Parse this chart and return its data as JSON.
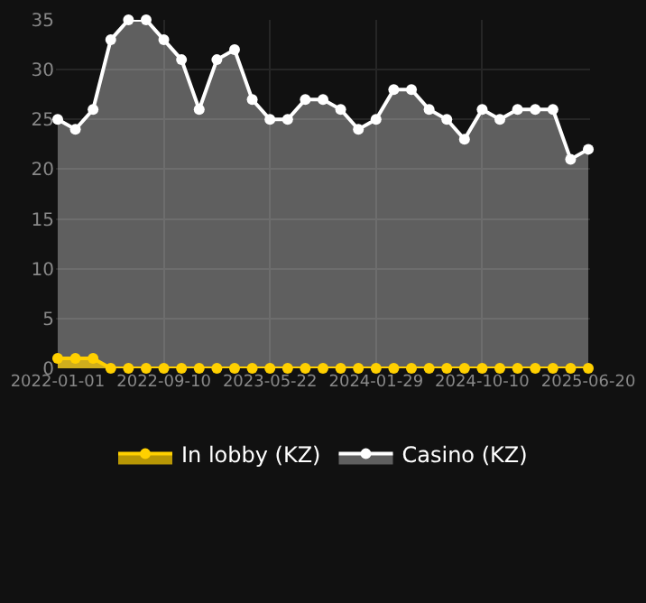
{
  "chart_data": {
    "type": "area",
    "categories": [
      "2022-01-01",
      null,
      null,
      null,
      null,
      null,
      "2022-09-10",
      null,
      null,
      null,
      null,
      null,
      "2023-05-22",
      null,
      null,
      null,
      null,
      null,
      "2024-01-29",
      null,
      null,
      null,
      null,
      null,
      "2024-10-10",
      null,
      null,
      null,
      null,
      null,
      "2025-06-20"
    ],
    "series": [
      {
        "name": "In lobby (KZ)",
        "color": "#ffd000",
        "values": [
          1,
          1,
          1,
          0,
          0,
          0,
          0,
          0,
          0,
          0,
          0,
          0,
          0,
          0,
          0,
          0,
          0,
          0,
          0,
          0,
          0,
          0,
          0,
          0,
          0,
          0,
          0,
          0,
          0,
          0,
          0
        ]
      },
      {
        "name": "Casino (KZ)",
        "color": "#ffffff",
        "values": [
          25,
          24,
          26,
          33,
          35,
          35,
          33,
          31,
          26,
          31,
          32,
          27,
          25,
          25,
          27,
          27,
          26,
          24,
          25,
          28,
          28,
          26,
          25,
          23,
          26,
          25,
          26,
          26,
          26,
          21,
          22
        ]
      }
    ],
    "ylim": [
      0,
      35
    ],
    "yticks": [
      0,
      5,
      10,
      15,
      20,
      25,
      30,
      35
    ],
    "grid": true,
    "legend": "bottom",
    "marker": "circle",
    "line_style": "solid"
  }
}
